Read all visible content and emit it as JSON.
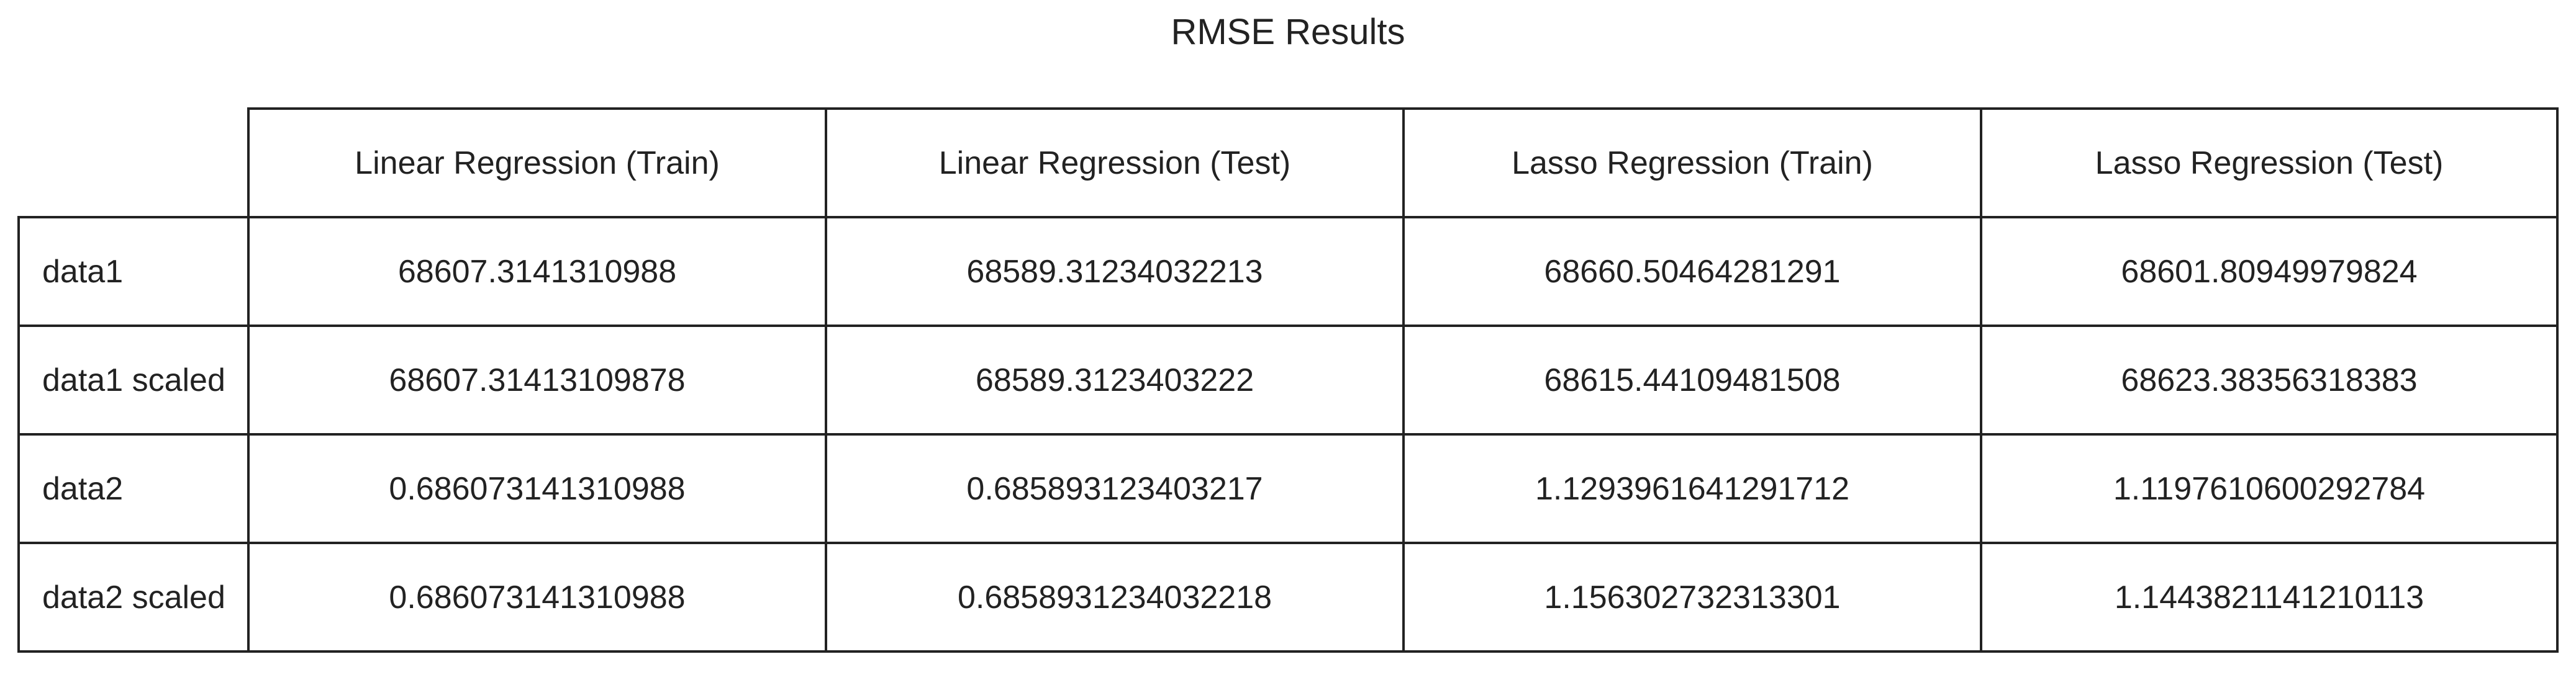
{
  "chart_data": {
    "type": "table",
    "title": "RMSE Results",
    "columns": [
      "Linear Regression (Train)",
      "Linear Regression (Test)",
      "Lasso Regression (Train)",
      "Lasso Regression (Test)"
    ],
    "rows": [
      {
        "label": "data1",
        "values": [
          "68607.3141310988",
          "68589.31234032213",
          "68660.50464281291",
          "68601.80949979824"
        ]
      },
      {
        "label": "data1 scaled",
        "values": [
          "68607.31413109878",
          "68589.3123403222",
          "68615.44109481508",
          "68623.38356318383"
        ]
      },
      {
        "label": "data2",
        "values": [
          "0.686073141310988",
          "0.685893123403217",
          "1.1293961641291712",
          "1.1197610600292784"
        ]
      },
      {
        "label": "data2 scaled",
        "values": [
          "0.686073141310988",
          "0.6858931234032218",
          "1.156302732313301",
          "1.1443821141210113"
        ]
      }
    ],
    "border_color": "#222222",
    "background_color": "#ffffff"
  }
}
